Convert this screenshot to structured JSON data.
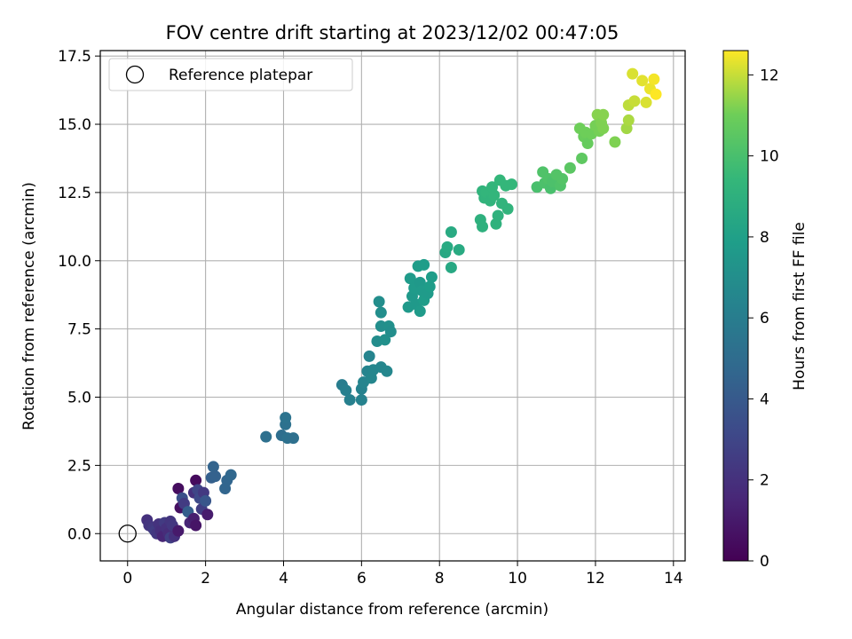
{
  "chart_data": {
    "type": "scatter",
    "title": "FOV centre drift starting at 2023/12/02 00:47:05",
    "xlabel": "Angular distance from reference (arcmin)",
    "ylabel": "Rotation from reference (arcmin)",
    "xlim": [
      -0.7,
      14.3
    ],
    "ylim": [
      -1.0,
      17.7
    ],
    "xticks": [
      0,
      2,
      4,
      6,
      8,
      10,
      12,
      14
    ],
    "yticks": [
      0.0,
      2.5,
      5.0,
      7.5,
      10.0,
      12.5,
      15.0,
      17.5
    ],
    "xtick_labels": [
      "0",
      "2",
      "4",
      "6",
      "8",
      "10",
      "12",
      "14"
    ],
    "ytick_labels": [
      "0.0",
      "2.5",
      "5.0",
      "7.5",
      "10.0",
      "12.5",
      "15.0",
      "17.5"
    ],
    "grid": true,
    "legend": {
      "label": "Reference platepar",
      "location": "upper-left"
    },
    "reference_point": {
      "x": 0,
      "y": 0
    },
    "colorbar": {
      "label": "Hours from first FF file",
      "range": [
        0,
        12.6
      ],
      "ticks": [
        0,
        2,
        4,
        6,
        8,
        10,
        12
      ],
      "tick_labels": [
        "0",
        "2",
        "4",
        "6",
        "8",
        "10",
        "12"
      ],
      "colormap": "viridis"
    },
    "points": [
      {
        "x": 0.5,
        "y": 0.5,
        "t": 2.0
      },
      {
        "x": 0.55,
        "y": 0.3,
        "t": 2.2
      },
      {
        "x": 0.65,
        "y": 0.2,
        "t": 2.4
      },
      {
        "x": 0.7,
        "y": 0.1,
        "t": 2.6
      },
      {
        "x": 0.75,
        "y": 0.0,
        "t": 2.3
      },
      {
        "x": 0.8,
        "y": 0.35,
        "t": 2.1
      },
      {
        "x": 0.85,
        "y": 0.1,
        "t": 1.9
      },
      {
        "x": 0.9,
        "y": -0.1,
        "t": 1.5
      },
      {
        "x": 0.95,
        "y": 0.4,
        "t": 2.5
      },
      {
        "x": 1.0,
        "y": 0.2,
        "t": 2.0
      },
      {
        "x": 1.05,
        "y": 0.0,
        "t": 1.8
      },
      {
        "x": 1.1,
        "y": 0.45,
        "t": 2.2
      },
      {
        "x": 1.1,
        "y": -0.15,
        "t": 2.7
      },
      {
        "x": 1.15,
        "y": 0.3,
        "t": 2.3
      },
      {
        "x": 1.2,
        "y": -0.1,
        "t": 2.0
      },
      {
        "x": 1.3,
        "y": 0.1,
        "t": 1.0
      },
      {
        "x": 1.3,
        "y": 1.65,
        "t": 0.5
      },
      {
        "x": 1.35,
        "y": 0.95,
        "t": 0.6
      },
      {
        "x": 1.4,
        "y": 1.3,
        "t": 3.5
      },
      {
        "x": 1.45,
        "y": 1.1,
        "t": 2.5
      },
      {
        "x": 1.55,
        "y": 0.8,
        "t": 4.2
      },
      {
        "x": 1.6,
        "y": 0.4,
        "t": 1.5
      },
      {
        "x": 1.7,
        "y": 0.55,
        "t": 1.2
      },
      {
        "x": 1.7,
        "y": 1.5,
        "t": 2.0
      },
      {
        "x": 1.75,
        "y": 1.95,
        "t": 0.4
      },
      {
        "x": 1.75,
        "y": 0.3,
        "t": 0.8
      },
      {
        "x": 1.8,
        "y": 1.6,
        "t": 3.0
      },
      {
        "x": 1.85,
        "y": 1.3,
        "t": 3.2
      },
      {
        "x": 1.9,
        "y": 0.9,
        "t": 2.6
      },
      {
        "x": 1.95,
        "y": 1.5,
        "t": 2.4
      },
      {
        "x": 2.0,
        "y": 1.2,
        "t": 3.8
      },
      {
        "x": 2.05,
        "y": 0.7,
        "t": 1.1
      },
      {
        "x": 2.15,
        "y": 2.05,
        "t": 4.3
      },
      {
        "x": 2.2,
        "y": 2.45,
        "t": 4.5
      },
      {
        "x": 2.25,
        "y": 2.1,
        "t": 4.4
      },
      {
        "x": 2.5,
        "y": 1.65,
        "t": 4.6
      },
      {
        "x": 2.55,
        "y": 1.95,
        "t": 4.6
      },
      {
        "x": 2.65,
        "y": 2.15,
        "t": 4.7
      },
      {
        "x": 3.55,
        "y": 3.55,
        "t": 5.2
      },
      {
        "x": 3.95,
        "y": 3.6,
        "t": 5.1
      },
      {
        "x": 4.05,
        "y": 4.0,
        "t": 5.3
      },
      {
        "x": 4.05,
        "y": 4.25,
        "t": 5.4
      },
      {
        "x": 4.1,
        "y": 3.5,
        "t": 5.3
      },
      {
        "x": 4.25,
        "y": 3.5,
        "t": 5.2
      },
      {
        "x": 5.5,
        "y": 5.45,
        "t": 6.0
      },
      {
        "x": 5.6,
        "y": 5.25,
        "t": 6.1
      },
      {
        "x": 5.7,
        "y": 4.9,
        "t": 6.2
      },
      {
        "x": 6.0,
        "y": 4.9,
        "t": 6.3
      },
      {
        "x": 6.0,
        "y": 5.3,
        "t": 6.3
      },
      {
        "x": 6.05,
        "y": 5.55,
        "t": 6.4
      },
      {
        "x": 6.15,
        "y": 5.95,
        "t": 6.4
      },
      {
        "x": 6.2,
        "y": 6.5,
        "t": 6.4
      },
      {
        "x": 6.25,
        "y": 5.7,
        "t": 6.5
      },
      {
        "x": 6.3,
        "y": 6.0,
        "t": 6.5
      },
      {
        "x": 6.4,
        "y": 7.05,
        "t": 6.9
      },
      {
        "x": 6.45,
        "y": 8.5,
        "t": 7.0
      },
      {
        "x": 6.5,
        "y": 6.1,
        "t": 6.5
      },
      {
        "x": 6.5,
        "y": 7.6,
        "t": 7.0
      },
      {
        "x": 6.5,
        "y": 8.1,
        "t": 7.0
      },
      {
        "x": 6.6,
        "y": 7.1,
        "t": 7.1
      },
      {
        "x": 6.65,
        "y": 5.95,
        "t": 6.6
      },
      {
        "x": 6.7,
        "y": 7.6,
        "t": 7.1
      },
      {
        "x": 6.75,
        "y": 7.4,
        "t": 7.0
      },
      {
        "x": 7.2,
        "y": 8.3,
        "t": 7.6
      },
      {
        "x": 7.25,
        "y": 9.35,
        "t": 7.7
      },
      {
        "x": 7.3,
        "y": 8.7,
        "t": 7.6
      },
      {
        "x": 7.35,
        "y": 9.0,
        "t": 7.7
      },
      {
        "x": 7.4,
        "y": 8.4,
        "t": 7.6
      },
      {
        "x": 7.45,
        "y": 9.8,
        "t": 7.8
      },
      {
        "x": 7.5,
        "y": 8.15,
        "t": 7.7
      },
      {
        "x": 7.5,
        "y": 9.2,
        "t": 7.6
      },
      {
        "x": 7.55,
        "y": 8.9,
        "t": 7.7
      },
      {
        "x": 7.6,
        "y": 8.55,
        "t": 7.8
      },
      {
        "x": 7.6,
        "y": 9.85,
        "t": 7.8
      },
      {
        "x": 7.7,
        "y": 8.8,
        "t": 7.7
      },
      {
        "x": 7.75,
        "y": 9.05,
        "t": 7.8
      },
      {
        "x": 7.8,
        "y": 9.4,
        "t": 7.8
      },
      {
        "x": 8.15,
        "y": 10.3,
        "t": 8.5
      },
      {
        "x": 8.2,
        "y": 10.5,
        "t": 8.6
      },
      {
        "x": 8.3,
        "y": 11.05,
        "t": 8.6
      },
      {
        "x": 8.3,
        "y": 9.75,
        "t": 8.5
      },
      {
        "x": 8.5,
        "y": 10.4,
        "t": 8.6
      },
      {
        "x": 9.05,
        "y": 11.5,
        "t": 9.0
      },
      {
        "x": 9.1,
        "y": 12.55,
        "t": 9.2
      },
      {
        "x": 9.1,
        "y": 11.25,
        "t": 9.0
      },
      {
        "x": 9.15,
        "y": 12.3,
        "t": 9.2
      },
      {
        "x": 9.2,
        "y": 12.5,
        "t": 9.3
      },
      {
        "x": 9.3,
        "y": 12.2,
        "t": 9.2
      },
      {
        "x": 9.35,
        "y": 12.7,
        "t": 9.3
      },
      {
        "x": 9.4,
        "y": 12.4,
        "t": 9.3
      },
      {
        "x": 9.45,
        "y": 11.35,
        "t": 9.1
      },
      {
        "x": 9.5,
        "y": 11.65,
        "t": 9.1
      },
      {
        "x": 9.55,
        "y": 12.95,
        "t": 9.4
      },
      {
        "x": 9.6,
        "y": 12.1,
        "t": 9.2
      },
      {
        "x": 9.7,
        "y": 12.75,
        "t": 9.4
      },
      {
        "x": 9.75,
        "y": 11.9,
        "t": 9.2
      },
      {
        "x": 9.85,
        "y": 12.8,
        "t": 9.4
      },
      {
        "x": 10.5,
        "y": 12.7,
        "t": 10.0
      },
      {
        "x": 10.65,
        "y": 13.25,
        "t": 10.2
      },
      {
        "x": 10.7,
        "y": 12.85,
        "t": 10.1
      },
      {
        "x": 10.8,
        "y": 13.0,
        "t": 10.2
      },
      {
        "x": 10.85,
        "y": 12.65,
        "t": 10.0
      },
      {
        "x": 10.9,
        "y": 12.9,
        "t": 10.1
      },
      {
        "x": 11.0,
        "y": 13.15,
        "t": 10.3
      },
      {
        "x": 11.1,
        "y": 12.75,
        "t": 10.2
      },
      {
        "x": 11.15,
        "y": 13.0,
        "t": 10.3
      },
      {
        "x": 11.35,
        "y": 13.4,
        "t": 10.5
      },
      {
        "x": 11.6,
        "y": 14.85,
        "t": 11.0
      },
      {
        "x": 11.65,
        "y": 13.75,
        "t": 10.6
      },
      {
        "x": 11.7,
        "y": 14.55,
        "t": 10.9
      },
      {
        "x": 11.75,
        "y": 14.7,
        "t": 11.0
      },
      {
        "x": 11.8,
        "y": 14.3,
        "t": 10.8
      },
      {
        "x": 11.9,
        "y": 14.65,
        "t": 11.0
      },
      {
        "x": 12.0,
        "y": 14.95,
        "t": 11.1
      },
      {
        "x": 12.05,
        "y": 15.35,
        "t": 11.3
      },
      {
        "x": 12.1,
        "y": 14.75,
        "t": 11.1
      },
      {
        "x": 12.15,
        "y": 15.05,
        "t": 11.2
      },
      {
        "x": 12.2,
        "y": 15.35,
        "t": 11.3
      },
      {
        "x": 12.2,
        "y": 14.85,
        "t": 11.2
      },
      {
        "x": 12.5,
        "y": 14.35,
        "t": 11.2
      },
      {
        "x": 12.8,
        "y": 14.85,
        "t": 11.6
      },
      {
        "x": 12.85,
        "y": 15.15,
        "t": 11.7
      },
      {
        "x": 12.85,
        "y": 15.7,
        "t": 11.9
      },
      {
        "x": 12.95,
        "y": 16.85,
        "t": 12.2
      },
      {
        "x": 13.0,
        "y": 15.85,
        "t": 12.0
      },
      {
        "x": 13.2,
        "y": 16.6,
        "t": 12.3
      },
      {
        "x": 13.3,
        "y": 15.8,
        "t": 12.2
      },
      {
        "x": 13.4,
        "y": 16.3,
        "t": 12.4
      },
      {
        "x": 13.5,
        "y": 16.65,
        "t": 12.5
      },
      {
        "x": 13.55,
        "y": 16.1,
        "t": 12.6
      }
    ]
  }
}
